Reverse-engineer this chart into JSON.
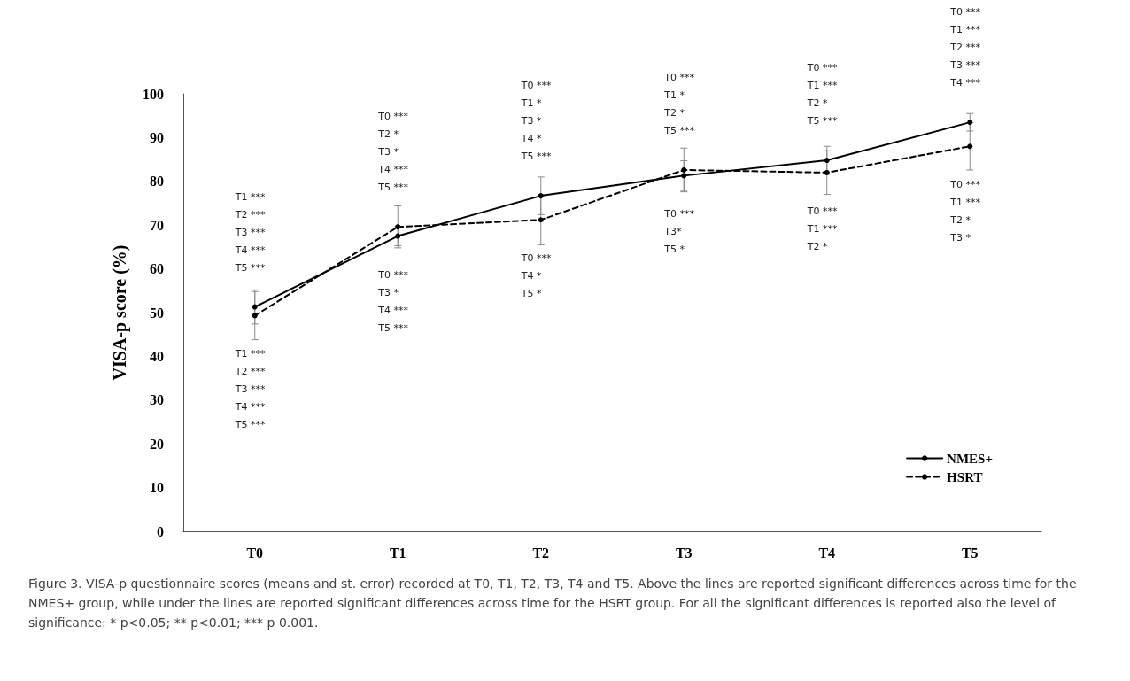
{
  "chart_data": {
    "type": "line",
    "ylabel": "VISA-p score (%)",
    "categories": [
      "T0",
      "T1",
      "T2",
      "T3",
      "T4",
      "T5"
    ],
    "series": [
      {
        "name": "NMES+",
        "color": "#000000",
        "line_style": "solid",
        "values": [
          51.3,
          67.5,
          76.7,
          81.3,
          84.8,
          93.5
        ],
        "errors": [
          3.9,
          2.2,
          4.3,
          3.4,
          3.2,
          2.0
        ]
      },
      {
        "name": "HSRT",
        "color": "#000000",
        "line_style": "dashed",
        "values": [
          49.3,
          69.6,
          71.2,
          82.6,
          82.0,
          88.0
        ],
        "errors": [
          5.5,
          4.8,
          5.7,
          5.0,
          5.0,
          5.4
        ]
      }
    ],
    "ylim": [
      0,
      100
    ],
    "yticks": [
      0,
      10,
      20,
      30,
      40,
      50,
      60,
      70,
      80,
      90,
      100
    ],
    "grid": false,
    "legend": "bottom right",
    "marker": "circle",
    "annotations": [
      "T1 ***",
      "T2 ***",
      "T3 ***",
      "T4 ***",
      "T5 ***",
      "T1 ***",
      "T2 ***",
      "T3 ***",
      "T4 ***",
      "T5 ***",
      "T0 ***",
      "T2 *",
      "T3 *",
      "T4 ***",
      "T5 ***",
      "T0 ***",
      "T3 *",
      "T4 ***",
      "T5 ***",
      "T0 ***",
      "T1 *",
      "T3 *",
      "T4 *",
      "T5 ***",
      "T0 ***",
      "T4 *",
      "T5 *",
      "T0 ***",
      "T1 *",
      "T2 *",
      "T5 ***",
      "T0 ***",
      "T3*",
      "T5 *",
      "T0 ***",
      "T1 ***",
      "T2 *",
      "T5 ***",
      "T0 ***",
      "T1 ***",
      "T2 *",
      "T0 ***",
      "T1 ***",
      "T2 ***",
      "T3 ***",
      "T4 ***",
      "T0 ***",
      "T1 ***",
      "T2 *",
      "T3 *",
      "Figure 3. VISA-p questionnaire scores (means and st. error) recorded at T0, T1, T2, T3, T4 and T5. Above the lines are reported significant differences across time for the NMES+ group, while under the lines are reported significant differences across time for the HSRT group. For all the significant differences is reported also the level of significance: * p<0.05; ** p<0.01; *** p 0.001."
    ]
  }
}
